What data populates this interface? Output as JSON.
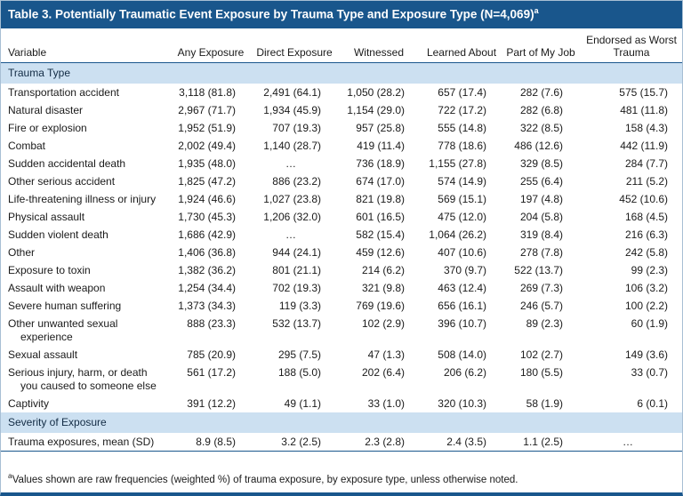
{
  "page": {
    "title": "Table 3. Potentially Traumatic Event Exposure by Trauma Type and Exposure Type (N=4,069)",
    "title_superscript": "a",
    "footnote_superscript": "a",
    "footnote": "Values shown are raw frequencies (weighted %) of trauma exposure, by exposure type, unless otherwise noted."
  },
  "colors": {
    "header_bar_bg": "#19568c",
    "section_band_bg": "#cce0f1",
    "rule": "#19568c",
    "text": "#1a1a1a"
  },
  "chart_data": {
    "type": "table",
    "title": "Table 3. Potentially Traumatic Event Exposure by Trauma Type and Exposure Type (N=4,069)",
    "columns": [
      "Variable",
      "Any Exposure",
      "Direct Exposure",
      "Witnessed",
      "Learned About",
      "Part of My Job",
      "Endorsed as Worst Trauma"
    ],
    "sections": [
      {
        "label": "Trauma Type",
        "rows": [
          {
            "variable": "Transportation accident",
            "values": [
              "3,118 (81.8)",
              "2,491 (64.1)",
              "1,050 (28.2)",
              "657 (17.4)",
              "282 (7.6)",
              "575 (15.7)"
            ]
          },
          {
            "variable": "Natural disaster",
            "values": [
              "2,967 (71.7)",
              "1,934 (45.9)",
              "1,154 (29.0)",
              "722 (17.2)",
              "282 (6.8)",
              "481 (11.8)"
            ]
          },
          {
            "variable": "Fire or explosion",
            "values": [
              "1,952 (51.9)",
              "707 (19.3)",
              "957 (25.8)",
              "555 (14.8)",
              "322 (8.5)",
              "158 (4.3)"
            ]
          },
          {
            "variable": "Combat",
            "values": [
              "2,002 (49.4)",
              "1,140 (28.7)",
              "419 (11.4)",
              "778 (18.6)",
              "486 (12.6)",
              "442 (11.9)"
            ]
          },
          {
            "variable": "Sudden accidental death",
            "values": [
              "1,935 (48.0)",
              "…",
              "736 (18.9)",
              "1,155 (27.8)",
              "329 (8.5)",
              "284 (7.7)"
            ]
          },
          {
            "variable": "Other serious accident",
            "values": [
              "1,825 (47.2)",
              "886 (23.2)",
              "674 (17.0)",
              "574 (14.9)",
              "255 (6.4)",
              "211 (5.2)"
            ]
          },
          {
            "variable": "Life-threatening illness or injury",
            "values": [
              "1,924 (46.6)",
              "1,027 (23.8)",
              "821 (19.8)",
              "569 (15.1)",
              "197 (4.8)",
              "452 (10.6)"
            ]
          },
          {
            "variable": "Physical assault",
            "values": [
              "1,730 (45.3)",
              "1,206 (32.0)",
              "601 (16.5)",
              "475 (12.0)",
              "204 (5.8)",
              "168 (4.5)"
            ]
          },
          {
            "variable": "Sudden violent death",
            "values": [
              "1,686 (42.9)",
              "…",
              "582 (15.4)",
              "1,064 (26.2)",
              "319 (8.4)",
              "216 (6.3)"
            ]
          },
          {
            "variable": "Other",
            "values": [
              "1,406 (36.8)",
              "944 (24.1)",
              "459 (12.6)",
              "407 (10.6)",
              "278 (7.8)",
              "242 (5.8)"
            ]
          },
          {
            "variable": "Exposure to toxin",
            "values": [
              "1,382 (36.2)",
              "801 (21.1)",
              "214 (6.2)",
              "370 (9.7)",
              "522 (13.7)",
              "99 (2.3)"
            ]
          },
          {
            "variable": "Assault with weapon",
            "values": [
              "1,254 (34.4)",
              "702 (19.3)",
              "321 (9.8)",
              "463 (12.4)",
              "269 (7.3)",
              "106 (3.2)"
            ]
          },
          {
            "variable": "Severe human suffering",
            "values": [
              "1,373 (34.3)",
              "119 (3.3)",
              "769 (19.6)",
              "656 (16.1)",
              "246 (5.7)",
              "100 (2.2)"
            ]
          },
          {
            "variable": "Other unwanted sexual experience",
            "values": [
              "888 (23.3)",
              "532 (13.7)",
              "102 (2.9)",
              "396 (10.7)",
              "89 (2.3)",
              "60 (1.9)"
            ]
          },
          {
            "variable": "Sexual assault",
            "values": [
              "785 (20.9)",
              "295 (7.5)",
              "47 (1.3)",
              "508 (14.0)",
              "102 (2.7)",
              "149 (3.6)"
            ]
          },
          {
            "variable": "Serious injury, harm, or death you caused to someone else",
            "values": [
              "561 (17.2)",
              "188 (5.0)",
              "202 (6.4)",
              "206 (6.2)",
              "180 (5.5)",
              "33 (0.7)"
            ]
          },
          {
            "variable": "Captivity",
            "values": [
              "391 (12.2)",
              "49 (1.1)",
              "33 (1.0)",
              "320 (10.3)",
              "58 (1.9)",
              "6 (0.1)"
            ]
          }
        ]
      },
      {
        "label": "Severity of Exposure",
        "rows": [
          {
            "variable": "Trauma exposures, mean (SD)",
            "values": [
              "8.9 (8.5)",
              "3.2 (2.5)",
              "2.3 (2.8)",
              "2.4 (3.5)",
              "1.1 (2.5)",
              "…"
            ]
          }
        ]
      }
    ]
  }
}
